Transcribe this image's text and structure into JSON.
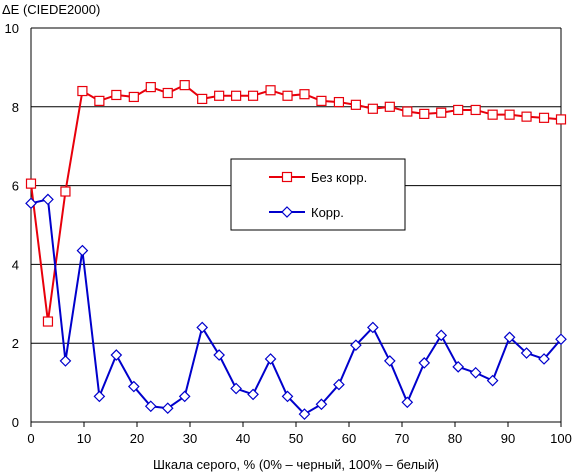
{
  "chart_data": {
    "type": "line",
    "title": "",
    "ylabel": "ΔE (CIEDE2000)",
    "xlabel": "Шкала серого, % (0% – черный, 100% – белый)",
    "xlim": [
      0,
      100
    ],
    "ylim": [
      0,
      10
    ],
    "x_ticks": [
      0,
      10,
      20,
      30,
      40,
      50,
      60,
      70,
      80,
      90,
      100
    ],
    "y_ticks": [
      0,
      2,
      4,
      6,
      8,
      10
    ],
    "grid": {
      "horizontal": true,
      "vertical": false
    },
    "legend_position": "center",
    "x": [
      0,
      3.2,
      6.5,
      9.7,
      12.9,
      16.1,
      19.4,
      22.6,
      25.8,
      29,
      32.3,
      35.5,
      38.7,
      41.9,
      45.2,
      48.4,
      51.6,
      54.8,
      58.1,
      61.3,
      64.5,
      67.7,
      71,
      74.2,
      77.4,
      80.6,
      83.9,
      87.1,
      90.3,
      93.5,
      96.8,
      100
    ],
    "series": [
      {
        "name": "Без корр.",
        "color": "#e8000b",
        "marker": "square",
        "values": [
          6.05,
          2.55,
          5.85,
          8.4,
          8.15,
          8.3,
          8.25,
          8.5,
          8.35,
          8.55,
          8.2,
          8.28,
          8.28,
          8.28,
          8.42,
          8.28,
          8.32,
          8.15,
          8.12,
          8.05,
          7.95,
          8.0,
          7.88,
          7.82,
          7.85,
          7.92,
          7.92,
          7.8,
          7.8,
          7.75,
          7.72,
          7.68
        ]
      },
      {
        "name": "Корр.",
        "color": "#0000cc",
        "marker": "diamond",
        "values": [
          5.55,
          5.65,
          1.55,
          4.35,
          0.65,
          1.7,
          0.9,
          0.4,
          0.35,
          0.65,
          2.4,
          1.7,
          0.85,
          0.7,
          1.6,
          0.65,
          0.2,
          0.45,
          0.95,
          1.95,
          2.4,
          1.55,
          0.5,
          1.5,
          2.2,
          1.4,
          1.25,
          1.05,
          2.15,
          1.75,
          1.6,
          2.1
        ]
      }
    ]
  }
}
